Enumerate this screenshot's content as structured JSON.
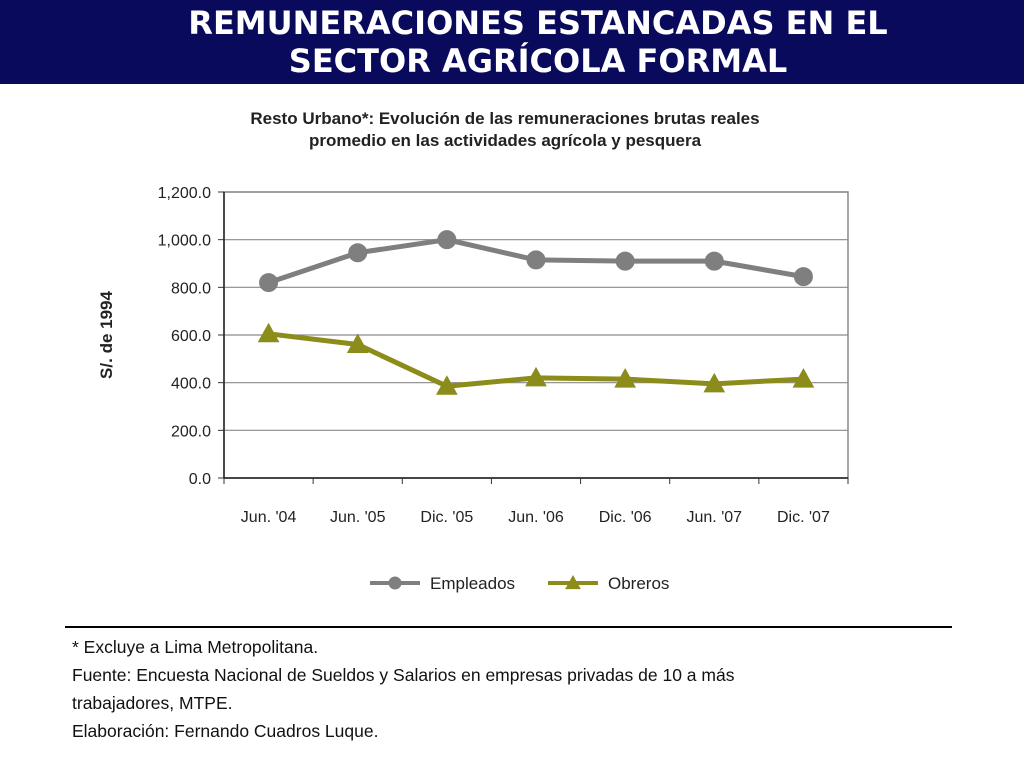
{
  "header": {
    "title_line1": "REMUNERACIONES ESTANCADAS EN EL",
    "title_line2": "SECTOR AGRÍCOLA FORMAL",
    "color": "#0a0a5c"
  },
  "chart_data": {
    "type": "line",
    "title_line1": "Resto Urbano*: Evolución de las remuneraciones brutas reales",
    "title_line2": "promedio en las actividades agrícola y pesquera",
    "xlabel": "",
    "ylabel": "S/. de 1994",
    "categories": [
      "Jun. '04",
      "Jun. '05",
      "Dic. '05",
      "Jun. '06",
      "Dic. '06",
      "Jun. '07",
      "Dic. '07"
    ],
    "yticks": [
      "0.0",
      "200.0",
      "400.0",
      "600.0",
      "800.0",
      "1,000.0",
      "1,200.0"
    ],
    "ylim": [
      0,
      1200
    ],
    "grid": true,
    "legend_position": "bottom",
    "series": [
      {
        "name": "Empleados",
        "marker": "circle",
        "color": "#7f7f7f",
        "values": [
          820,
          945,
          1000,
          915,
          910,
          910,
          845
        ]
      },
      {
        "name": "Obreros",
        "marker": "triangle",
        "color": "#8c8c1a",
        "values": [
          605,
          560,
          385,
          420,
          415,
          395,
          415
        ]
      }
    ]
  },
  "notes": {
    "note1": "* Excluye a Lima Metropolitana.",
    "source": "Fuente: Encuesta Nacional de Sueldos y Salarios en empresas privadas de 10 a más",
    "source_cont": "trabajadores, MTPE.",
    "author": "Elaboración: Fernando Cuadros Luque."
  }
}
